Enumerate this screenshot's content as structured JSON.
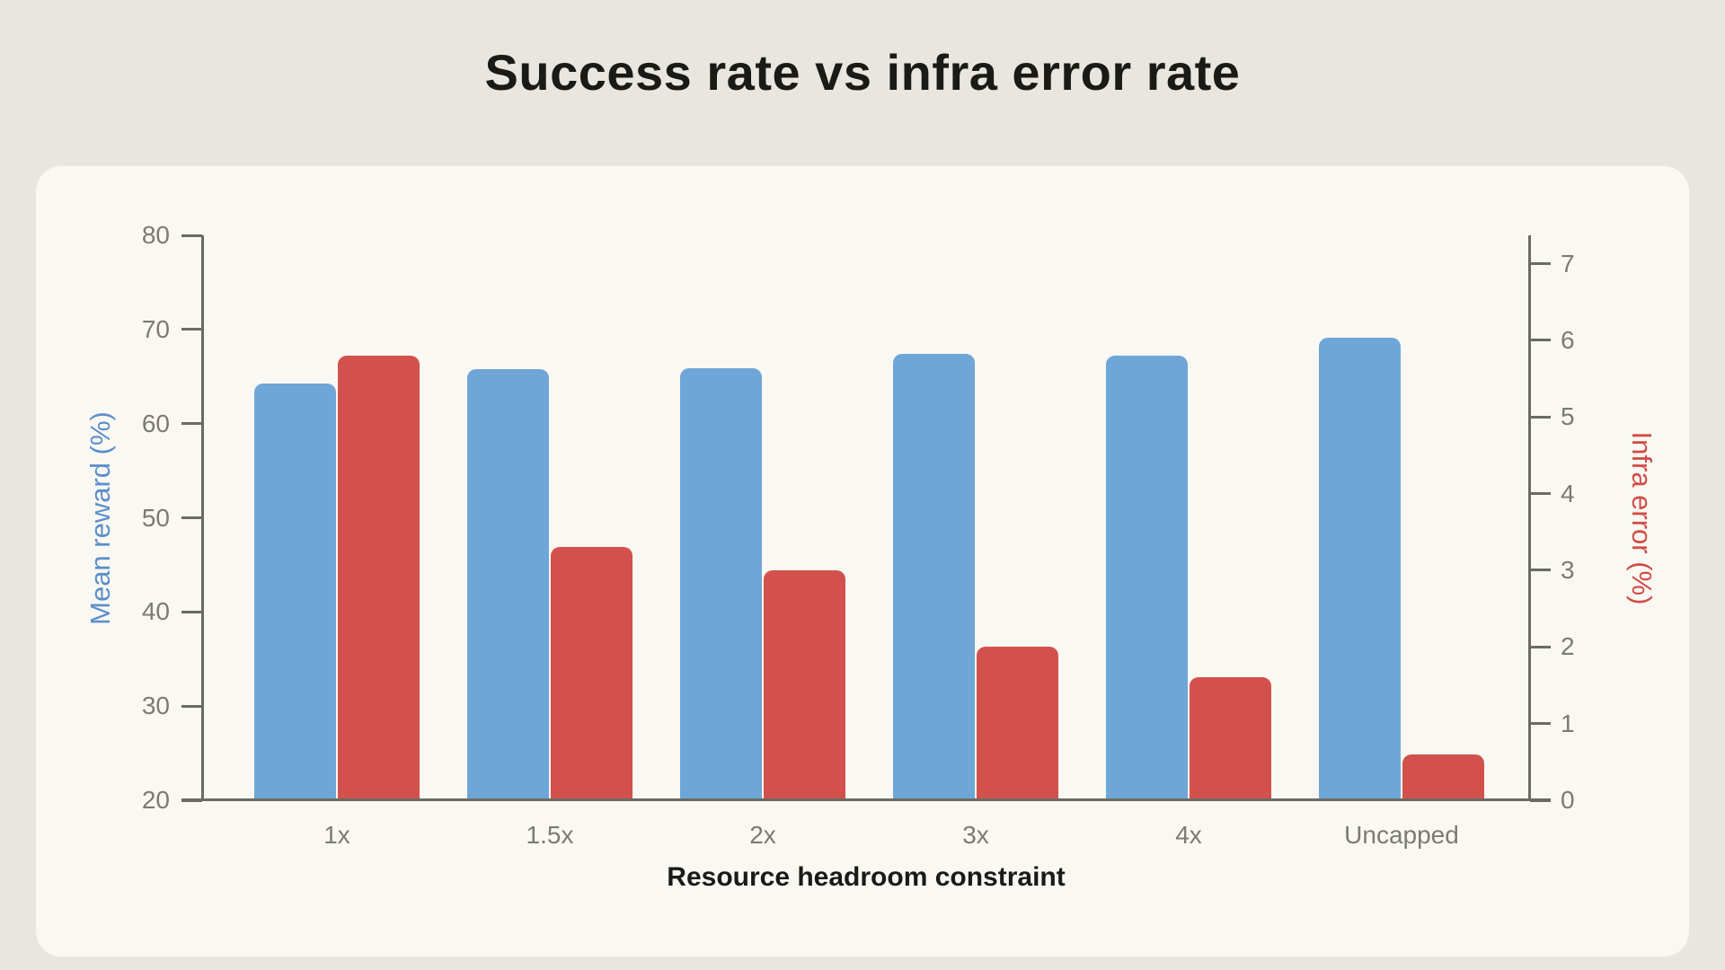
{
  "chart_data": {
    "type": "bar",
    "title": "Success rate vs infra error rate",
    "xlabel": "Resource headroom constraint",
    "categories": [
      "1x",
      "1.5x",
      "2x",
      "3x",
      "4x",
      "Uncapped"
    ],
    "series": [
      {
        "name": "Mean reward (%)",
        "axis": "left",
        "color": "#6FA6D8",
        "values": [
          64.3,
          65.8,
          65.9,
          67.4,
          67.2,
          69.1
        ]
      },
      {
        "name": "Infra error (%)",
        "axis": "right",
        "color": "#D3514C",
        "values": [
          5.8,
          3.3,
          3.0,
          2.0,
          1.6,
          0.6
        ]
      }
    ],
    "left_axis": {
      "label": "Mean reward (%)",
      "color": "#5B8FCB",
      "ticks": [
        20,
        30,
        40,
        50,
        60,
        70,
        80
      ],
      "ylim": [
        20,
        80
      ]
    },
    "right_axis": {
      "label": "Infra error (%)",
      "color": "#D24B46",
      "ticks": [
        0,
        1,
        2,
        3,
        4,
        5,
        6,
        7
      ],
      "ylim": [
        0,
        7.37
      ]
    },
    "grid": false,
    "legend": "none"
  },
  "colors": {
    "page_bg": "#E8E6DE",
    "card_bg": "#FAF8F2",
    "spine": "#6B6A64",
    "tick_label": "#7B7A74",
    "title_text": "#1A1A16",
    "xlabel_text": "#1A1A16"
  }
}
